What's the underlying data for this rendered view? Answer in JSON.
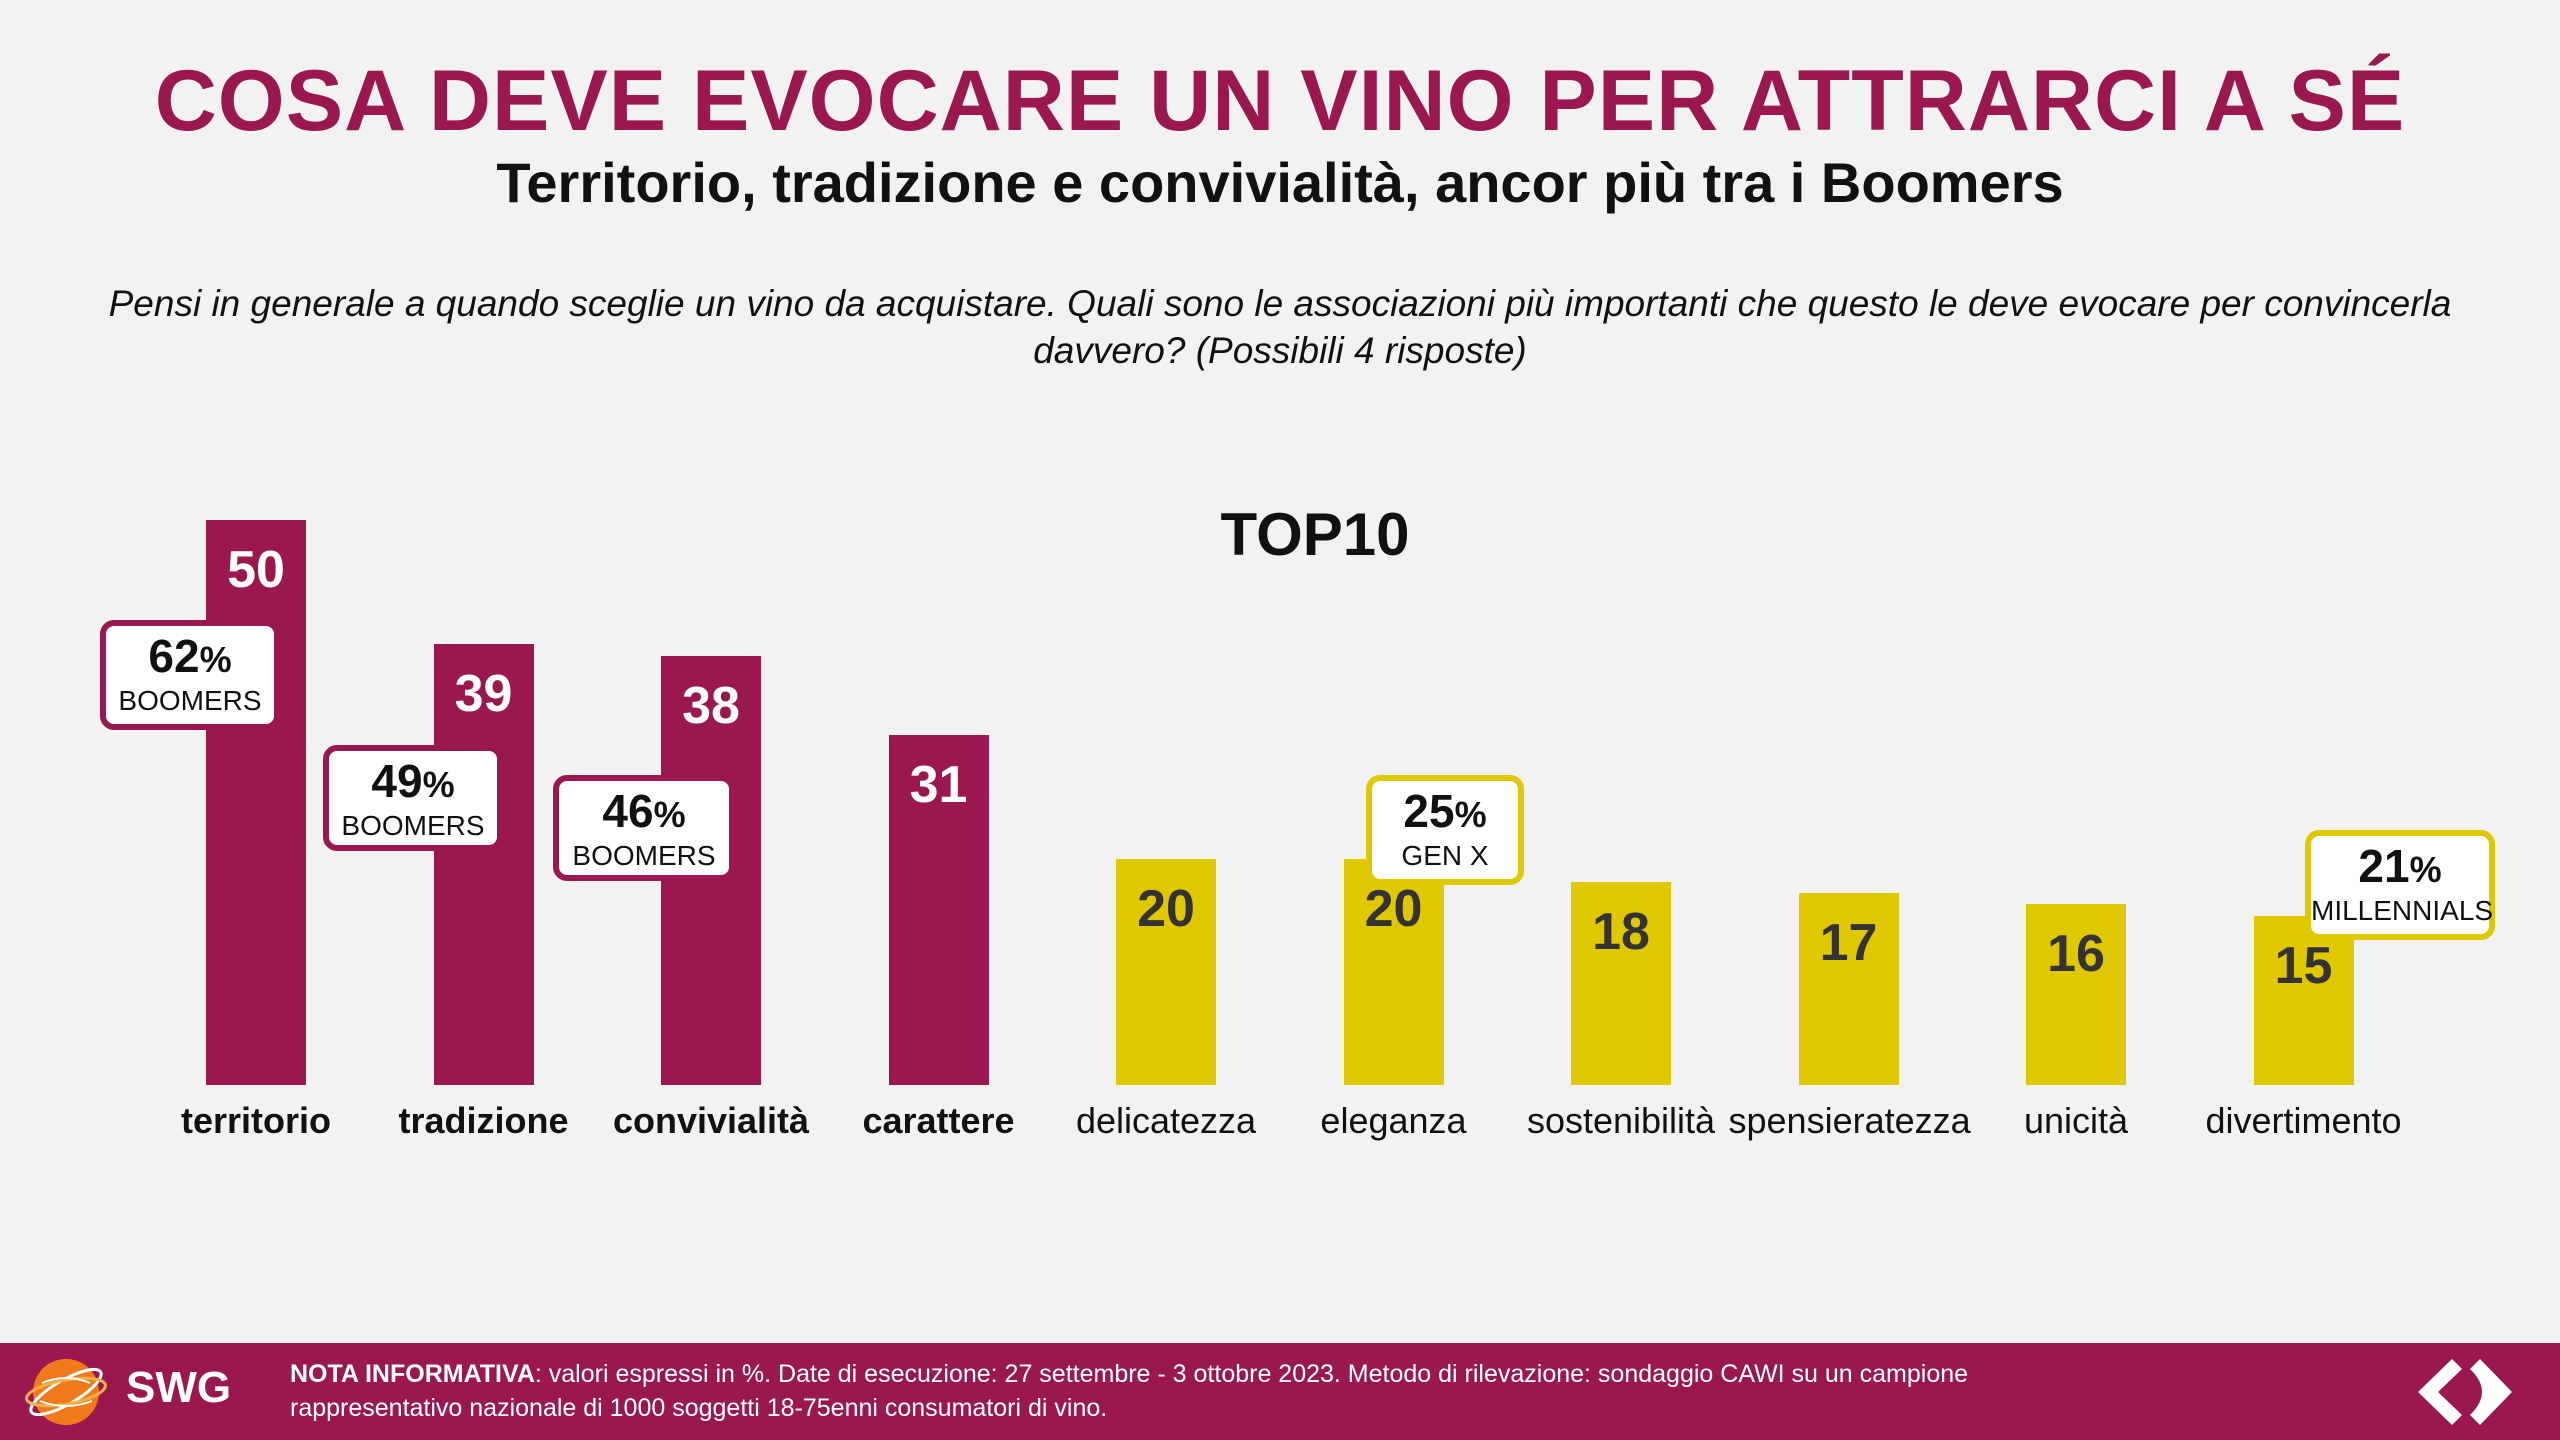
{
  "header": {
    "title": "COSA DEVE EVOCARE UN VINO PER ATTRARCI A SÉ",
    "subtitle": "Territorio, tradizione e convivialità, ancor più tra i Boomers",
    "question": "Pensi in generale a quando sceglie un vino da acquistare. Quali sono le associazioni più importanti che questo le deve evocare per convincerla davvero? (Possibili 4 risposte)"
  },
  "colors": {
    "primary": "#9a1750",
    "secondary": "#e0c800",
    "background": "#f2f2f2"
  },
  "chart_data": {
    "type": "bar",
    "title": "TOP10",
    "categories": [
      "territorio",
      "tradizione",
      "convivialità",
      "carattere",
      "delicatezza",
      "eleganza",
      "sostenibilità",
      "spensieratezza",
      "unicità",
      "divertimento"
    ],
    "values": [
      50,
      39,
      38,
      31,
      20,
      20,
      18,
      17,
      16,
      15
    ],
    "bar_colors": [
      "#9a1750",
      "#9a1750",
      "#9a1750",
      "#9a1750",
      "#e0c800",
      "#e0c800",
      "#e0c800",
      "#e0c800",
      "#e0c800",
      "#e0c800"
    ],
    "bold_categories": [
      true,
      true,
      true,
      true,
      false,
      false,
      false,
      false,
      false,
      false
    ],
    "ylim": [
      0,
      50
    ],
    "grid": false,
    "callouts": [
      {
        "category": "territorio",
        "value": "62",
        "unit": "%",
        "label": "BOOMERS",
        "color": "#9a1750"
      },
      {
        "category": "tradizione",
        "value": "49",
        "unit": "%",
        "label": "BOOMERS",
        "color": "#9a1750"
      },
      {
        "category": "convivialità",
        "value": "46",
        "unit": "%",
        "label": "BOOMERS",
        "color": "#9a1750"
      },
      {
        "category": "eleganza",
        "value": "25",
        "unit": "%",
        "label": "GEN X",
        "color": "#e0c800"
      },
      {
        "category": "divertimento",
        "value": "21",
        "unit": "%",
        "label": "MILLENNIALS",
        "color": "#e0c800"
      }
    ]
  },
  "footer": {
    "brand": "SWG",
    "note_label": "NOTA INFORMATIVA",
    "note_text": ": valori espressi in %. Date di esecuzione: 27 settembre - 3 ottobre 2023. Metodo di rilevazione: sondaggio CAWI su un campione rappresentativo nazionale di 1000 soggetti 18-75enni consumatori di vino.",
    "icons": [
      "globe-logo-icon",
      "carrefour-logo-icon"
    ]
  }
}
